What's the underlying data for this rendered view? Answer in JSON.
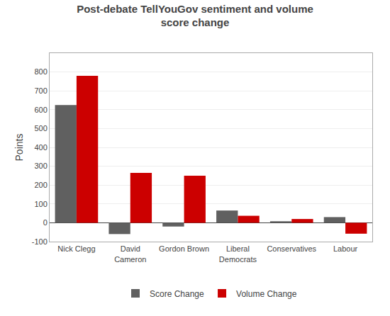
{
  "chart_data": {
    "type": "bar",
    "title": "Post-debate TellYouGov sentiment and volume\nscore change",
    "ylabel": "Points",
    "categories": [
      "Nick Clegg",
      "David\nCameron",
      "Gordon Brown",
      "Liberal\nDemocrats",
      "Conservatives",
      "Labour"
    ],
    "series": [
      {
        "name": "Score Change",
        "color": "#606060",
        "values": [
          625,
          -60,
          -20,
          65,
          8,
          30
        ]
      },
      {
        "name": "Volume Change",
        "color": "#cc0000",
        "values": [
          780,
          265,
          250,
          37,
          20,
          -58
        ]
      }
    ],
    "ylim": [
      -100,
      900
    ],
    "yticks": [
      -100,
      0,
      100,
      200,
      300,
      400,
      500,
      600,
      700,
      800
    ],
    "grid": true,
    "legend": "bottom"
  }
}
